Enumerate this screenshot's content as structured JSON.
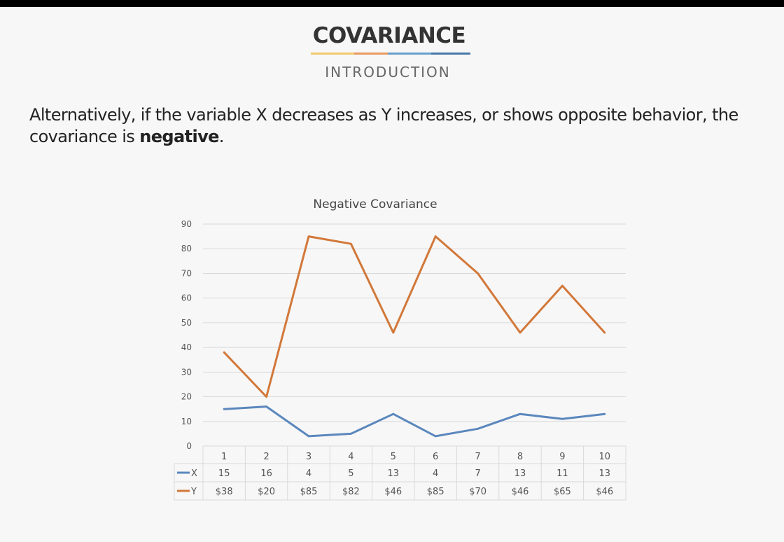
{
  "slide": {
    "title": "COVARIANCE",
    "subtitle": "INTRODUCTION",
    "body_before": "Alternatively, if the variable X decreases as Y increases, or shows opposite behavior, the covariance is ",
    "body_bold": "negative",
    "body_after": ".",
    "underline_colors": [
      "#f2c96b",
      "#e89a60",
      "#6a9fcc",
      "#4a78a8"
    ]
  },
  "chart_data": {
    "type": "line",
    "title": "Negative Covariance",
    "categories": [
      "1",
      "2",
      "3",
      "4",
      "5",
      "6",
      "7",
      "8",
      "9",
      "10"
    ],
    "series": [
      {
        "name": "X",
        "values": [
          15,
          16,
          4,
          5,
          13,
          4,
          7,
          13,
          11,
          13
        ],
        "table_labels": [
          "15",
          "16",
          "4",
          "5",
          "13",
          "4",
          "7",
          "13",
          "11",
          "13"
        ],
        "color": "#5b87bd"
      },
      {
        "name": "Y",
        "values": [
          38,
          20,
          85,
          82,
          46,
          85,
          70,
          46,
          65,
          46
        ],
        "table_labels": [
          "$38",
          "$20",
          "$85",
          "$82",
          "$46",
          "$85",
          "$70",
          "$46",
          "$65",
          "$46"
        ],
        "color": "#d2783a"
      }
    ],
    "ylim": [
      0,
      90
    ],
    "y_ticks": [
      "0",
      "10",
      "20",
      "30",
      "40",
      "50",
      "60",
      "70",
      "80",
      "90"
    ],
    "grid": true,
    "legend": "data-table"
  }
}
